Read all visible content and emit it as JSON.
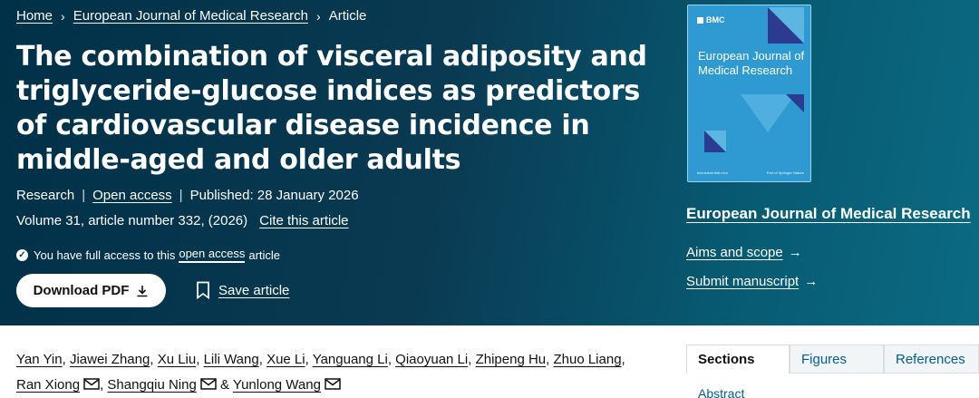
{
  "breadcrumb": {
    "home": "Home",
    "journal": "European Journal of Medical Research",
    "current": "Article",
    "separator": "›"
  },
  "article": {
    "title": "The combination of visceral adiposity and triglyceride-glucose indices as predictors of cardiovascular disease incidence in middle-aged and older adults",
    "type": "Research",
    "access": "Open access",
    "published": "Published: 28 January 2026",
    "volume": "Volume 31, article number 332, (2026)",
    "cite": "Cite this article",
    "access_note_prefix": "You have full access to this",
    "access_note_link": "open access",
    "access_note_suffix": "article"
  },
  "actions": {
    "download": "Download PDF",
    "save": "Save article"
  },
  "cover": {
    "brand": "BMC",
    "journal_name": "European Journal of Medical Research",
    "footer_left": "biomedcentral.com",
    "footer_right": "Part of Springer Nature",
    "colors": {
      "background": "#2f9ad1",
      "dark_triangle": "#2b3b8f",
      "light_triangle": "#5cb6e1"
    }
  },
  "journal_panel": {
    "name": "European Journal of Medical Research",
    "aims": "Aims and scope",
    "submit": "Submit manuscript",
    "arrow": "→"
  },
  "authors": [
    {
      "name": "Yan Yin",
      "mail": false,
      "sep": ", "
    },
    {
      "name": "Jiawei Zhang",
      "mail": false,
      "sep": ", "
    },
    {
      "name": "Xu Liu",
      "mail": false,
      "sep": ", "
    },
    {
      "name": "Lili Wang",
      "mail": false,
      "sep": ", "
    },
    {
      "name": "Xue Li",
      "mail": false,
      "sep": ", "
    },
    {
      "name": "Yanguang Li",
      "mail": false,
      "sep": ", "
    },
    {
      "name": "Qiaoyuan Li",
      "mail": false,
      "sep": ", "
    },
    {
      "name": "Zhipeng Hu",
      "mail": false,
      "sep": ", "
    },
    {
      "name": "Zhuo Liang",
      "mail": false,
      "sep": ", "
    },
    {
      "name": "Ran Xiong",
      "mail": true,
      "sep": ", "
    },
    {
      "name": "Shangqiu Ning",
      "mail": true,
      "sep": " & "
    },
    {
      "name": "Yunlong Wang",
      "mail": true,
      "sep": ""
    }
  ],
  "tabs": [
    {
      "label": "Sections",
      "active": true
    },
    {
      "label": "Figures",
      "active": false
    },
    {
      "label": "References",
      "active": false
    }
  ],
  "toc_first": "Abstract",
  "colors": {
    "hero_dark": "#013148",
    "hero_light": "#0b6a82",
    "link_blue": "#025e8d"
  }
}
